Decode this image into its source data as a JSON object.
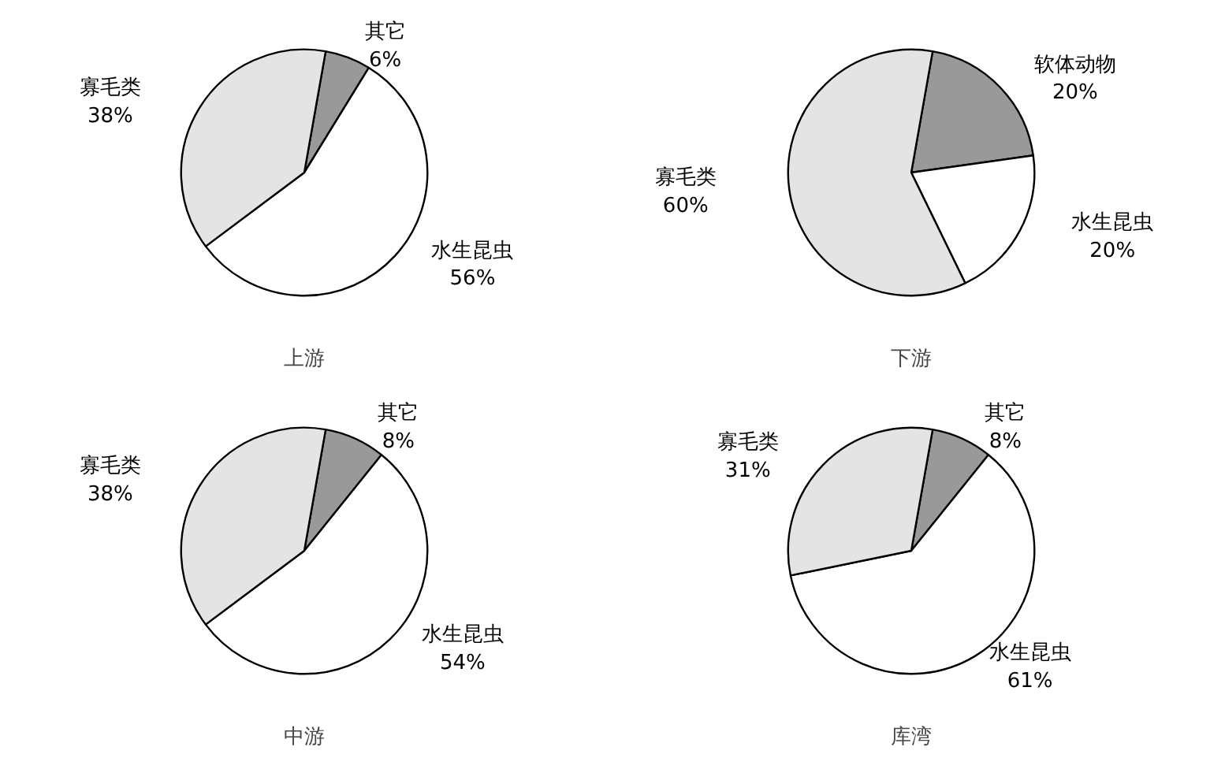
{
  "chart_data": [
    {
      "type": "pie",
      "title": "上游",
      "categories": [
        "其它",
        "水生昆虫",
        "寡毛类"
      ],
      "values": [
        6,
        56,
        38
      ],
      "value_labels": [
        "6%",
        "56%",
        "38%"
      ],
      "colors": [
        "#999999",
        "#ffffff",
        "#e4e4e4"
      ]
    },
    {
      "type": "pie",
      "title": "下游",
      "categories": [
        "软体动物",
        "水生昆虫",
        "寡毛类"
      ],
      "values": [
        20,
        20,
        60
      ],
      "value_labels": [
        "20%",
        "20%",
        "60%"
      ],
      "colors": [
        "#999999",
        "#ffffff",
        "#e4e4e4"
      ]
    },
    {
      "type": "pie",
      "title": "中游",
      "categories": [
        "其它",
        "水生昆虫",
        "寡毛类"
      ],
      "values": [
        8,
        54,
        38
      ],
      "value_labels": [
        "8%",
        "54%",
        "38%"
      ],
      "colors": [
        "#999999",
        "#ffffff",
        "#e4e4e4"
      ]
    },
    {
      "type": "pie",
      "title": "库湾",
      "categories": [
        "其它",
        "水生昆虫",
        "寡毛类"
      ],
      "values": [
        8,
        61,
        31
      ],
      "value_labels": [
        "8%",
        "61%",
        "31%"
      ],
      "colors": [
        "#999999",
        "#ffffff",
        "#e4e4e4"
      ]
    }
  ]
}
